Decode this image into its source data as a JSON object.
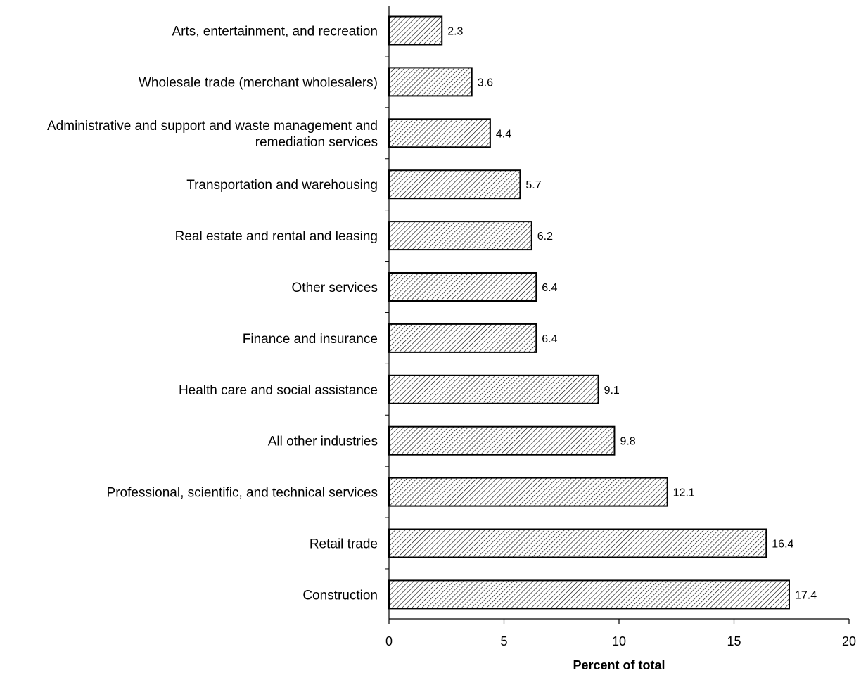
{
  "chart_data": {
    "type": "bar",
    "orientation": "horizontal",
    "categories": [
      [
        "Arts, entertainment, and recreation"
      ],
      [
        "Wholesale trade (merchant wholesalers)"
      ],
      [
        "Administrative and support and waste management and",
        "remediation services"
      ],
      [
        "Transportation and warehousing"
      ],
      [
        "Real estate and rental and leasing"
      ],
      [
        "Other services"
      ],
      [
        "Finance and insurance"
      ],
      [
        "Health care and social assistance"
      ],
      [
        "All other industries"
      ],
      [
        "Professional, scientific, and technical services"
      ],
      [
        "Retail trade"
      ],
      [
        "Construction"
      ]
    ],
    "values": [
      2.3,
      3.6,
      4.4,
      5.7,
      6.2,
      6.4,
      6.4,
      9.1,
      9.8,
      12.1,
      16.4,
      17.4
    ],
    "data_labels": [
      "2.3",
      "3.6",
      "4.4",
      "5.7",
      "6.2",
      "6.4",
      "6.4",
      "9.1",
      "9.8",
      "12.1",
      "16.4",
      "17.4"
    ],
    "xlim": [
      0,
      20
    ],
    "xticks": [
      0,
      5,
      10,
      15,
      20
    ],
    "xtick_labels": [
      "0",
      "5",
      "10",
      "15",
      "20"
    ],
    "xlabel": "Percent of total",
    "ylabel": "",
    "title": "",
    "grid": false,
    "legend": "none",
    "bar_fill": "diagonal-hatch",
    "colors": {
      "bar_outline": "#000000",
      "hatch": "#000000",
      "background": "#ffffff"
    }
  }
}
